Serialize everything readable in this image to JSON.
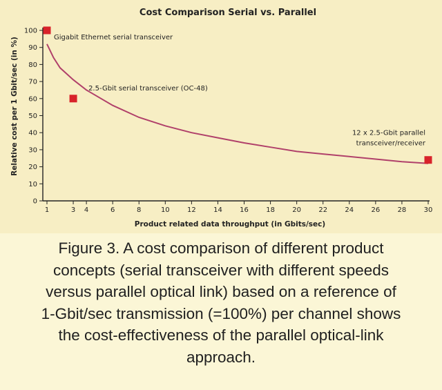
{
  "chart_data": {
    "type": "scatter",
    "title": "Cost Comparison Serial vs. Parallel",
    "xlabel": "Product related data throughput (in Gbits/sec)",
    "ylabel": "Relative cost per 1 Gbit/sec (in %)",
    "xlim": [
      0,
      30
    ],
    "ylim": [
      0,
      100
    ],
    "x_ticks": [
      1,
      3,
      4,
      6,
      8,
      10,
      12,
      14,
      16,
      18,
      20,
      22,
      24,
      26,
      28,
      30
    ],
    "y_ticks": [
      0,
      10,
      20,
      30,
      40,
      50,
      60,
      70,
      80,
      90,
      100
    ],
    "grid": false,
    "series": [
      {
        "points": [
          {
            "x": 1,
            "y": 100
          },
          {
            "x": 3,
            "y": 60
          },
          {
            "x": 30,
            "y": 24
          }
        ]
      }
    ],
    "trend_curve": [
      {
        "x": 1,
        "y": 92
      },
      {
        "x": 1.5,
        "y": 84
      },
      {
        "x": 2,
        "y": 78
      },
      {
        "x": 3,
        "y": 71
      },
      {
        "x": 4,
        "y": 65
      },
      {
        "x": 6,
        "y": 56
      },
      {
        "x": 8,
        "y": 49
      },
      {
        "x": 10,
        "y": 44
      },
      {
        "x": 12,
        "y": 40
      },
      {
        "x": 14,
        "y": 37
      },
      {
        "x": 16,
        "y": 34
      },
      {
        "x": 18,
        "y": 31.5
      },
      {
        "x": 20,
        "y": 29
      },
      {
        "x": 22,
        "y": 27.5
      },
      {
        "x": 24,
        "y": 26
      },
      {
        "x": 26,
        "y": 24.5
      },
      {
        "x": 28,
        "y": 23
      },
      {
        "x": 30,
        "y": 22
      }
    ],
    "annotations": [
      {
        "text": "Gigabit Ethernet serial transceiver",
        "x": 1,
        "y": 100
      },
      {
        "text": "2.5-Gbit serial transceiver (OC-48)",
        "x": 3,
        "y": 60
      },
      {
        "text": "12 x 2.5-Gbit parallel",
        "x": 30,
        "y": 24
      },
      {
        "text": "transceiver/receiver",
        "x": 30,
        "y": 24
      }
    ],
    "colors": {
      "marker": "#d8232a",
      "curve": "#b0406a",
      "axis": "#222222"
    }
  },
  "caption": {
    "lines": [
      "Figure 3. A cost comparison of different product",
      "concepts (serial transceiver with different speeds",
      "versus parallel optical link) based on a reference of",
      "1-Gbit/sec transmission (=100%) per channel shows",
      "the cost-effectiveness of the parallel optical-link",
      "approach."
    ]
  }
}
